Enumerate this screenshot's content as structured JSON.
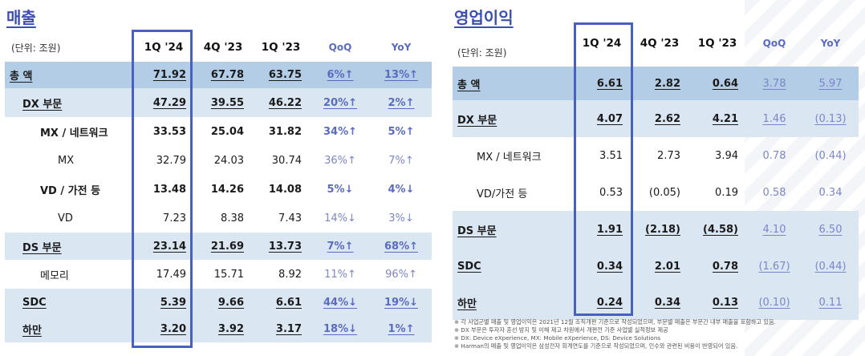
{
  "left": {
    "title": "매출",
    "unit": "(단위: 조원)",
    "headers": [
      "1Q '24",
      "4Q '23",
      "1Q '23",
      "QoQ",
      "YoY"
    ],
    "rows": [
      {
        "label": "총 액",
        "v1": "71.92",
        "v2": "67.78",
        "v3": "63.75",
        "qoq": "6%↑",
        "yoy": "13%↑"
      },
      {
        "label": "DX 부문",
        "v1": "47.29",
        "v2": "39.55",
        "v3": "46.22",
        "qoq": "20%↑",
        "yoy": "2%↑"
      },
      {
        "label": "MX / 네트워크",
        "v1": "33.53",
        "v2": "25.04",
        "v3": "31.82",
        "qoq": "34%↑",
        "yoy": "5%↑"
      },
      {
        "label": "MX",
        "v1": "32.79",
        "v2": "24.03",
        "v3": "30.74",
        "qoq": "36%↑",
        "yoy": "7%↑"
      },
      {
        "label": "VD / 가전 등",
        "v1": "13.48",
        "v2": "14.26",
        "v3": "14.08",
        "qoq": "5%↓",
        "yoy": "4%↓"
      },
      {
        "label": "VD",
        "v1": "7.23",
        "v2": "8.38",
        "v3": "7.43",
        "qoq": "14%↓",
        "yoy": "3%↓"
      },
      {
        "label": "DS 부문",
        "v1": "23.14",
        "v2": "21.69",
        "v3": "13.73",
        "qoq": "7%↑",
        "yoy": "68%↑"
      },
      {
        "label": "메모리",
        "v1": "17.49",
        "v2": "15.71",
        "v3": "8.92",
        "qoq": "11%↑",
        "yoy": "96%↑"
      },
      {
        "label": "SDC",
        "v1": "5.39",
        "v2": "9.66",
        "v3": "6.61",
        "qoq": "44%↓",
        "yoy": "19%↓"
      },
      {
        "label": "하만",
        "v1": "3.20",
        "v2": "3.92",
        "v3": "3.17",
        "qoq": "18%↓",
        "yoy": "1%↑"
      }
    ]
  },
  "right": {
    "title": "영업이익",
    "unit": "(단위: 조원)",
    "headers": [
      "1Q '24",
      "4Q '23",
      "1Q '23",
      "QoQ",
      "YoY"
    ],
    "rows": [
      {
        "label": "총 액",
        "v1": "6.61",
        "v2": "2.82",
        "v3": "0.64",
        "qoq": "3.78",
        "yoy": "5.97"
      },
      {
        "label": "DX 부문",
        "v1": "4.07",
        "v2": "2.62",
        "v3": "4.21",
        "qoq": "1.46",
        "yoy": "(0.13)"
      },
      {
        "label": "MX / 네트워크",
        "v1": "3.51",
        "v2": "2.73",
        "v3": "3.94",
        "qoq": "0.78",
        "yoy": "(0.44)"
      },
      {
        "label": "VD/가전 등",
        "v1": "0.53",
        "v2": "(0.05)",
        "v3": "0.19",
        "qoq": "0.58",
        "yoy": "0.34"
      },
      {
        "label": "DS 부문",
        "v1": "1.91",
        "v2": "(2.18)",
        "v3": "(4.58)",
        "qoq": "4.10",
        "yoy": "6.50"
      },
      {
        "label": "SDC",
        "v1": "0.34",
        "v2": "2.01",
        "v3": "0.78",
        "qoq": "(1.67)",
        "yoy": "(0.44)"
      },
      {
        "label": "하만",
        "v1": "0.24",
        "v2": "0.34",
        "v3": "0.13",
        "qoq": "(0.10)",
        "yoy": "0.11"
      }
    ]
  },
  "notes": [
    "※ 각 사업군별 매출 및 영업이익은 2021년 12월 조직개편 기준으로 작성되었으며, 부문별 매출은 부문간 내부 매출을 포함하고 있음.",
    "※ DX 부문은 투자자 혼선 방지 및 이해 제고 차원에서 개편전 기준 사업별 실적정보 제공",
    "※ DX: Device eXperience, MX: Mobile eXperience, DS: Device Solutions",
    "※ Harman의 매출 및 영업이익은 삼성전자 회계연도를 기준으로 작성되었으며, 인수와 관련된 비용이 반영되어 있음."
  ]
}
